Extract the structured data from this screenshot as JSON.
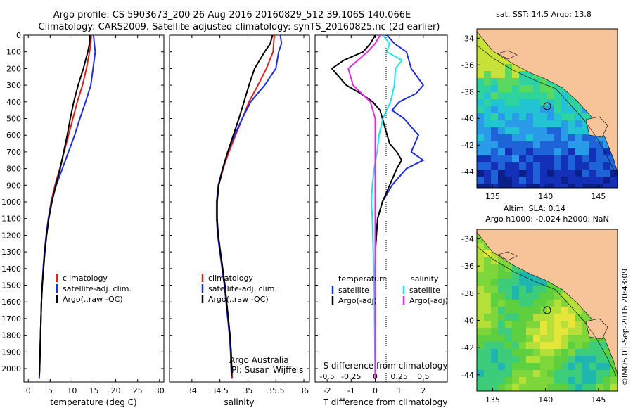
{
  "header": {
    "line1": "Argo profile: CS 5903673_200 26-Aug-2016 20160829_512 39.106S 140.066E",
    "line2": "Climatology: CARS2009. Satellite-adjusted climatology: synTS_20160825.nc (2d earlier)"
  },
  "colors": {
    "climatology": "#e0201b",
    "satellite": "#1f2fd6",
    "argo": "#000000",
    "sal_satellite": "#22e3e8",
    "sal_argo": "#e827e8",
    "land": "#f7c49a"
  },
  "chart_data": [
    {
      "id": "temperature",
      "type": "line",
      "xlabel": "temperature (deg C)",
      "xlim": [
        -1,
        31
      ],
      "xticks": [
        0,
        5,
        10,
        15,
        20,
        25,
        30
      ],
      "ylim": [
        2080,
        0
      ],
      "yticks": [
        0,
        100,
        200,
        300,
        400,
        500,
        600,
        700,
        800,
        900,
        1000,
        1100,
        1200,
        1300,
        1400,
        1500,
        1600,
        1700,
        1800,
        1900,
        2000
      ],
      "legend": [
        "climatology",
        "satellite-adj. clim.",
        "Argo(..raw -QC)"
      ],
      "series": [
        {
          "name": "climatology",
          "color": "#e0201b",
          "points": [
            [
              14.4,
              0
            ],
            [
              14.3,
              50
            ],
            [
              14.0,
              100
            ],
            [
              13.3,
              200
            ],
            [
              12.4,
              300
            ],
            [
              11.2,
              400
            ],
            [
              10.2,
              500
            ],
            [
              9.2,
              600
            ],
            [
              8.2,
              700
            ],
            [
              7.2,
              800
            ],
            [
              6.1,
              900
            ],
            [
              5.2,
              1000
            ],
            [
              4.6,
              1100
            ],
            [
              4.1,
              1200
            ],
            [
              3.7,
              1300
            ],
            [
              3.4,
              1400
            ],
            [
              3.2,
              1500
            ],
            [
              3.0,
              1600
            ],
            [
              2.9,
              1700
            ],
            [
              2.8,
              1800
            ],
            [
              2.7,
              1900
            ],
            [
              2.6,
              2000
            ],
            [
              2.5,
              2060
            ]
          ]
        },
        {
          "name": "satellite-adj. clim.",
          "color": "#1f2fd6",
          "points": [
            [
              14.9,
              0
            ],
            [
              15.1,
              50
            ],
            [
              15.3,
              100
            ],
            [
              14.8,
              200
            ],
            [
              14.3,
              300
            ],
            [
              13.1,
              400
            ],
            [
              11.8,
              500
            ],
            [
              10.6,
              600
            ],
            [
              9.2,
              700
            ],
            [
              7.8,
              800
            ],
            [
              6.4,
              900
            ],
            [
              5.3,
              1000
            ],
            [
              4.6,
              1100
            ],
            [
              4.1,
              1200
            ],
            [
              3.7,
              1300
            ],
            [
              3.4,
              1400
            ],
            [
              3.2,
              1500
            ],
            [
              3.0,
              1600
            ],
            [
              2.9,
              1700
            ],
            [
              2.8,
              1800
            ],
            [
              2.7,
              1900
            ],
            [
              2.6,
              2000
            ],
            [
              2.5,
              2060
            ]
          ]
        },
        {
          "name": "Argo(..raw -QC)",
          "color": "#000000",
          "points": [
            [
              14.1,
              0
            ],
            [
              14.0,
              50
            ],
            [
              13.6,
              100
            ],
            [
              12.6,
              200
            ],
            [
              11.4,
              300
            ],
            [
              10.4,
              400
            ],
            [
              9.6,
              500
            ],
            [
              8.9,
              600
            ],
            [
              8.1,
              700
            ],
            [
              7.3,
              800
            ],
            [
              6.3,
              900
            ],
            [
              5.4,
              1000
            ],
            [
              4.7,
              1100
            ],
            [
              4.2,
              1200
            ],
            [
              3.8,
              1300
            ],
            [
              3.5,
              1400
            ],
            [
              3.2,
              1500
            ],
            [
              3.0,
              1600
            ],
            [
              2.9,
              1700
            ],
            [
              2.8,
              1800
            ],
            [
              2.7,
              1900
            ],
            [
              2.6,
              2000
            ],
            [
              2.5,
              2040
            ]
          ]
        }
      ]
    },
    {
      "id": "salinity",
      "type": "line",
      "xlabel": "salinity",
      "xlim": [
        33.6,
        36.1
      ],
      "xticks": [
        34,
        34.5,
        35,
        35.5,
        36
      ],
      "xtick_labels": [
        "34",
        "34.5",
        "35",
        "35.5",
        "36"
      ],
      "legend": [
        "climatology",
        "satellite-adj. clim.",
        "Argo(..raw -QC)"
      ],
      "annotations": [
        "Argo Australia",
        "PI: Susan Wijffels"
      ],
      "series": [
        {
          "name": "climatology",
          "color": "#e0201b",
          "points": [
            [
              35.47,
              0
            ],
            [
              35.45,
              100
            ],
            [
              35.33,
              200
            ],
            [
              35.18,
              300
            ],
            [
              35.02,
              400
            ],
            [
              34.9,
              500
            ],
            [
              34.78,
              600
            ],
            [
              34.66,
              700
            ],
            [
              34.56,
              800
            ],
            [
              34.48,
              900
            ],
            [
              34.45,
              1000
            ],
            [
              34.45,
              1100
            ],
            [
              34.47,
              1200
            ],
            [
              34.51,
              1300
            ],
            [
              34.55,
              1400
            ],
            [
              34.59,
              1500
            ],
            [
              34.62,
              1600
            ],
            [
              34.65,
              1700
            ],
            [
              34.68,
              1800
            ],
            [
              34.7,
              1900
            ],
            [
              34.71,
              2000
            ],
            [
              34.72,
              2060
            ]
          ]
        },
        {
          "name": "satellite-adj. clim.",
          "color": "#1f2fd6",
          "points": [
            [
              35.58,
              0
            ],
            [
              35.6,
              50
            ],
            [
              35.55,
              100
            ],
            [
              35.5,
              200
            ],
            [
              35.3,
              300
            ],
            [
              35.05,
              400
            ],
            [
              34.9,
              500
            ],
            [
              34.76,
              600
            ],
            [
              34.64,
              700
            ],
            [
              34.55,
              800
            ],
            [
              34.47,
              900
            ],
            [
              34.44,
              1000
            ],
            [
              34.44,
              1100
            ],
            [
              34.46,
              1200
            ],
            [
              34.5,
              1300
            ],
            [
              34.54,
              1400
            ],
            [
              34.58,
              1500
            ],
            [
              34.61,
              1600
            ],
            [
              34.64,
              1700
            ],
            [
              34.67,
              1800
            ],
            [
              34.69,
              1900
            ],
            [
              34.7,
              2000
            ],
            [
              34.71,
              2060
            ]
          ]
        },
        {
          "name": "Argo(..raw -QC)",
          "color": "#000000",
          "points": [
            [
              35.44,
              0
            ],
            [
              35.4,
              50
            ],
            [
              35.3,
              100
            ],
            [
              35.12,
              200
            ],
            [
              35.02,
              300
            ],
            [
              34.93,
              400
            ],
            [
              34.84,
              500
            ],
            [
              34.74,
              600
            ],
            [
              34.64,
              700
            ],
            [
              34.55,
              800
            ],
            [
              34.48,
              900
            ],
            [
              34.45,
              1000
            ],
            [
              34.45,
              1100
            ],
            [
              34.47,
              1200
            ],
            [
              34.51,
              1300
            ],
            [
              34.55,
              1400
            ],
            [
              34.59,
              1500
            ],
            [
              34.62,
              1600
            ],
            [
              34.65,
              1700
            ],
            [
              34.68,
              1800
            ],
            [
              34.7,
              1900
            ],
            [
              34.71,
              2000
            ],
            [
              34.71,
              2040
            ]
          ]
        }
      ]
    },
    {
      "id": "difference",
      "type": "line",
      "xlabel": "T difference from climatology",
      "xlabel_top": "S difference from climatology",
      "xlim": [
        -2.5,
        3.0
      ],
      "xticks": [
        -2,
        -1,
        0,
        1,
        2
      ],
      "s_xticks": [
        -0.5,
        -0.25,
        0,
        0.25,
        0.5
      ],
      "s_xtick_labels": [
        "-0.5",
        "-0.25",
        "0",
        "0.25",
        "0.5"
      ],
      "legend_titles": [
        "temperature",
        "salinity"
      ],
      "legend_left": [
        "satellite",
        "Argo(-adj)"
      ],
      "legend_right": [
        "satellite",
        "Argo(-adj)"
      ],
      "series": [
        {
          "name": "temperature satellite",
          "color": "#1f2fd6",
          "points": [
            [
              0.5,
              0
            ],
            [
              0.8,
              50
            ],
            [
              1.3,
              100
            ],
            [
              1.5,
              200
            ],
            [
              2.0,
              300
            ],
            [
              1.7,
              350
            ],
            [
              1.0,
              400
            ],
            [
              0.7,
              450
            ],
            [
              1.2,
              500
            ],
            [
              1.8,
              600
            ],
            [
              1.5,
              700
            ],
            [
              2.0,
              750
            ],
            [
              1.3,
              800
            ],
            [
              0.7,
              900
            ],
            [
              0.3,
              1000
            ],
            [
              0.1,
              1100
            ],
            [
              0.0,
              1300
            ],
            [
              0.0,
              2060
            ]
          ]
        },
        {
          "name": "temperature Argo(-adj)",
          "color": "#000000",
          "points": [
            [
              0.0,
              0
            ],
            [
              -0.2,
              50
            ],
            [
              -0.5,
              100
            ],
            [
              -1.3,
              150
            ],
            [
              -1.8,
              200
            ],
            [
              -1.2,
              300
            ],
            [
              -0.6,
              350
            ],
            [
              -0.1,
              400
            ],
            [
              0.2,
              450
            ],
            [
              0.4,
              550
            ],
            [
              0.6,
              650
            ],
            [
              0.9,
              700
            ],
            [
              1.1,
              750
            ],
            [
              0.9,
              800
            ],
            [
              0.6,
              900
            ],
            [
              0.3,
              1000
            ],
            [
              0.1,
              1100
            ],
            [
              0.0,
              1300
            ],
            [
              0.0,
              2060
            ]
          ]
        },
        {
          "name": "salinity satellite",
          "color": "#22e3e8",
          "points": [
            [
              0.08,
              0
            ],
            [
              0.15,
              50
            ],
            [
              0.12,
              100
            ],
            [
              0.28,
              150
            ],
            [
              0.21,
              200
            ],
            [
              0.2,
              300
            ],
            [
              0.16,
              400
            ],
            [
              0.08,
              500
            ],
            [
              0.04,
              600
            ],
            [
              0.02,
              700
            ],
            [
              -0.01,
              800
            ],
            [
              -0.03,
              900
            ],
            [
              -0.04,
              1000
            ],
            [
              -0.03,
              1100
            ],
            [
              -0.02,
              1300
            ],
            [
              -0.01,
              1500
            ],
            [
              0.0,
              2060
            ]
          ]
        },
        {
          "name": "salinity Argo(-adj)",
          "color": "#e827e8",
          "points": [
            [
              0.05,
              0
            ],
            [
              0.0,
              50
            ],
            [
              -0.08,
              100
            ],
            [
              -0.28,
              200
            ],
            [
              -0.23,
              300
            ],
            [
              -0.05,
              400
            ],
            [
              0.0,
              500
            ],
            [
              0.0,
              2060
            ]
          ]
        }
      ]
    }
  ],
  "map_top": {
    "title": "sat. SST: 14.5 Argo: 13.8",
    "yticks": [
      -34,
      -36,
      -38,
      -40,
      -42,
      -44
    ],
    "xticks": [
      135,
      140,
      145
    ],
    "argo_marker": [
      140.066,
      -39.106
    ]
  },
  "map_bottom": {
    "title_line1": "Altim. SLA: 0.14",
    "title_line2": "Argo h1000: -0.024 h2000: NaN",
    "yticks": [
      -34,
      -36,
      -38,
      -40,
      -42,
      -44
    ],
    "xticks": [
      135,
      140,
      145
    ],
    "argo_marker": [
      140.066,
      -39.106
    ]
  },
  "side_label": "©IMOS 01-Sep-2016 20:43:09"
}
